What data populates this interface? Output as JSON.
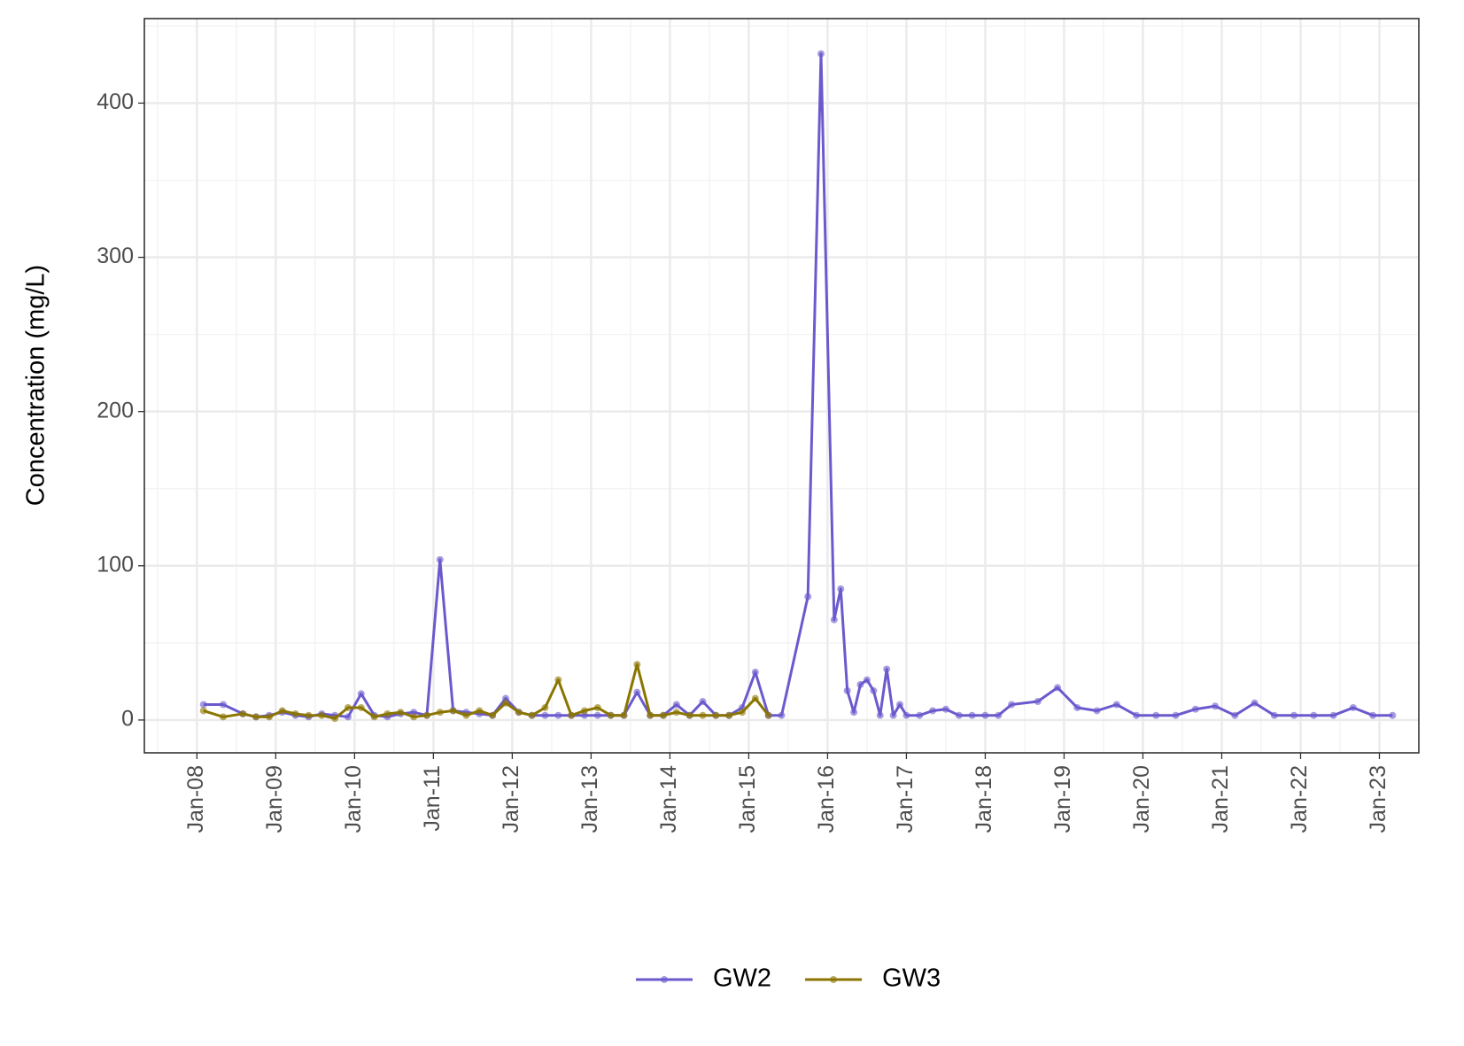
{
  "chart_data": {
    "type": "line",
    "y_label": "Concentration (mg/L)",
    "xlim": [
      "2007-05",
      "2023-07"
    ],
    "xticks": [
      {
        "value": "2008-01",
        "label": "Jan-08"
      },
      {
        "value": "2009-01",
        "label": "Jan-09"
      },
      {
        "value": "2010-01",
        "label": "Jan-10"
      },
      {
        "value": "2011-01",
        "label": "Jan-11"
      },
      {
        "value": "2012-01",
        "label": "Jan-12"
      },
      {
        "value": "2013-01",
        "label": "Jan-13"
      },
      {
        "value": "2014-01",
        "label": "Jan-14"
      },
      {
        "value": "2015-01",
        "label": "Jan-15"
      },
      {
        "value": "2016-01",
        "label": "Jan-16"
      },
      {
        "value": "2017-01",
        "label": "Jan-17"
      },
      {
        "value": "2018-01",
        "label": "Jan-18"
      },
      {
        "value": "2019-01",
        "label": "Jan-19"
      },
      {
        "value": "2020-01",
        "label": "Jan-20"
      },
      {
        "value": "2021-01",
        "label": "Jan-21"
      },
      {
        "value": "2022-01",
        "label": "Jan-22"
      },
      {
        "value": "2023-01",
        "label": "Jan-23"
      }
    ],
    "ylim": [
      -21.3,
      454.8
    ],
    "yticks": [
      0,
      100,
      200,
      300,
      400
    ],
    "grid": true,
    "legend": "bottom",
    "series": [
      {
        "name": "GW2",
        "color": "#6a5acd",
        "x": [
          "2008-02",
          "2008-05",
          "2008-08",
          "2008-10",
          "2008-12",
          "2009-02",
          "2009-04",
          "2009-06",
          "2009-08",
          "2009-10",
          "2009-12",
          "2010-02",
          "2010-04",
          "2010-06",
          "2010-08",
          "2010-10",
          "2010-12",
          "2011-02",
          "2011-04",
          "2011-06",
          "2011-08",
          "2011-10",
          "2011-12",
          "2012-02",
          "2012-04",
          "2012-06",
          "2012-08",
          "2012-10",
          "2012-12",
          "2013-02",
          "2013-04",
          "2013-06",
          "2013-08",
          "2013-10",
          "2013-12",
          "2014-02",
          "2014-04",
          "2014-06",
          "2014-08",
          "2014-10",
          "2014-12",
          "2015-02",
          "2015-04",
          "2015-06",
          "2015-10",
          "2015-12",
          "2016-02",
          "2016-03",
          "2016-04",
          "2016-05",
          "2016-06",
          "2016-07",
          "2016-08",
          "2016-09",
          "2016-10",
          "2016-11",
          "2016-12",
          "2017-01",
          "2017-03",
          "2017-05",
          "2017-07",
          "2017-09",
          "2017-11",
          "2018-01",
          "2018-03",
          "2018-05",
          "2018-09",
          "2018-12",
          "2019-03",
          "2019-06",
          "2019-09",
          "2019-12",
          "2020-03",
          "2020-06",
          "2020-09",
          "2020-12",
          "2021-03",
          "2021-06",
          "2021-09",
          "2021-12",
          "2022-03",
          "2022-06",
          "2022-09",
          "2022-12",
          "2023-03"
        ],
        "values": [
          10,
          10,
          4,
          2,
          3,
          5,
          3,
          2,
          4,
          3,
          2,
          17,
          3,
          2,
          4,
          5,
          3,
          104,
          6,
          5,
          4,
          3,
          14,
          5,
          3,
          3,
          3,
          3,
          3,
          3,
          3,
          3,
          18,
          3,
          3,
          10,
          3,
          12,
          3,
          3,
          8,
          31,
          3,
          3,
          80,
          432,
          65,
          85,
          19,
          5,
          23,
          26,
          19,
          3,
          33,
          3,
          10,
          3,
          3,
          6,
          7,
          3,
          3,
          3,
          3,
          10,
          12,
          21,
          8,
          6,
          10,
          3,
          3,
          3,
          7,
          9,
          3,
          11,
          3,
          3,
          3,
          3,
          8,
          3,
          3
        ]
      },
      {
        "name": "GW3",
        "color": "#8b7500",
        "x": [
          "2008-02",
          "2008-05",
          "2008-08",
          "2008-10",
          "2008-12",
          "2009-02",
          "2009-04",
          "2009-06",
          "2009-08",
          "2009-10",
          "2009-12",
          "2010-02",
          "2010-04",
          "2010-06",
          "2010-08",
          "2010-10",
          "2010-12",
          "2011-02",
          "2011-04",
          "2011-06",
          "2011-08",
          "2011-10",
          "2011-12",
          "2012-02",
          "2012-04",
          "2012-06",
          "2012-08",
          "2012-10",
          "2012-12",
          "2013-02",
          "2013-04",
          "2013-06",
          "2013-08",
          "2013-10",
          "2013-12",
          "2014-02",
          "2014-04",
          "2014-06",
          "2014-08",
          "2014-10",
          "2014-12",
          "2015-02",
          "2015-04"
        ],
        "values": [
          6,
          2,
          4,
          2,
          2,
          6,
          4,
          3,
          3,
          1,
          8,
          8,
          2,
          4,
          5,
          2,
          3,
          5,
          6,
          3,
          6,
          3,
          11,
          5,
          3,
          8,
          26,
          3,
          6,
          8,
          3,
          3,
          36,
          3,
          3,
          5,
          3,
          3,
          3,
          3,
          5,
          14,
          3
        ]
      }
    ]
  }
}
